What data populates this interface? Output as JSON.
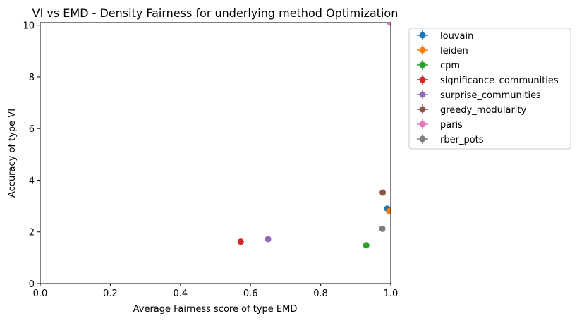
{
  "chart_data": {
    "type": "scatter",
    "title": "VI vs EMD - Density Fairness for underlying method Optimization",
    "xlabel": "Average Fairness score of type EMD",
    "ylabel": "Accuracy of type VI",
    "xlim": [
      0,
      1
    ],
    "ylim": [
      0,
      10.1
    ],
    "xticks": [
      "0.0",
      "0.2",
      "0.4",
      "0.6",
      "0.8",
      "1.0"
    ],
    "yticks": [
      "0",
      "2",
      "4",
      "6",
      "8",
      "10"
    ],
    "grid": false,
    "legend_position": "outside-right",
    "series": [
      {
        "name": "louvain",
        "color": "#1f77b4",
        "x": 0.99,
        "y": 2.9
      },
      {
        "name": "leiden",
        "color": "#ff7f0e",
        "x": 0.995,
        "y": 2.8
      },
      {
        "name": "cpm",
        "color": "#2ca02c",
        "x": 0.93,
        "y": 1.48
      },
      {
        "name": "significance_communities",
        "color": "#d62728",
        "x": 0.572,
        "y": 1.62
      },
      {
        "name": "surprise_communities",
        "color": "#9467bd",
        "x": 0.65,
        "y": 1.72
      },
      {
        "name": "greedy_modularity",
        "color": "#8c564b",
        "x": 0.977,
        "y": 3.52
      },
      {
        "name": "paris",
        "color": "#e377c2",
        "x": 0.998,
        "y": 10.1
      },
      {
        "name": "rber_pots",
        "color": "#7f7f7f",
        "x": 0.976,
        "y": 2.12
      }
    ]
  }
}
